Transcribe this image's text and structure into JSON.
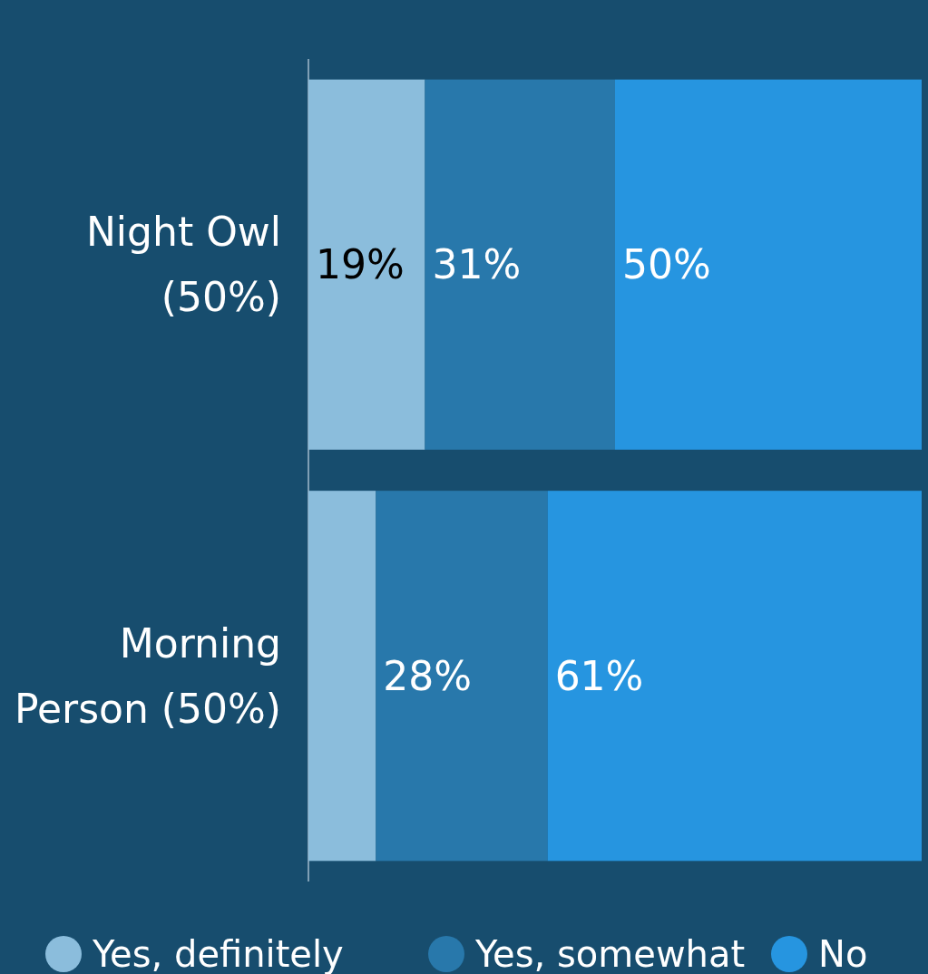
{
  "chart_data": {
    "type": "bar",
    "orientation": "horizontal",
    "stacked": true,
    "categories": [
      "Night Owl (50%)",
      "Morning Person (50%)"
    ],
    "xlim": [
      0,
      100
    ],
    "tick_labels": "y",
    "legend": "bottom",
    "series": [
      {
        "name": "Yes, definitely",
        "color": "#8bbddc",
        "values": [
          19,
          11
        ],
        "value_labels": [
          "19%",
          null
        ]
      },
      {
        "name": "Yes, somewhat",
        "color": "#2878ab",
        "values": [
          31,
          28
        ],
        "value_labels": [
          "31%",
          "28%"
        ]
      },
      {
        "name": "No",
        "color": "#2695e0",
        "values": [
          50,
          61
        ],
        "value_labels": [
          "50%",
          "61%"
        ]
      }
    ]
  }
}
